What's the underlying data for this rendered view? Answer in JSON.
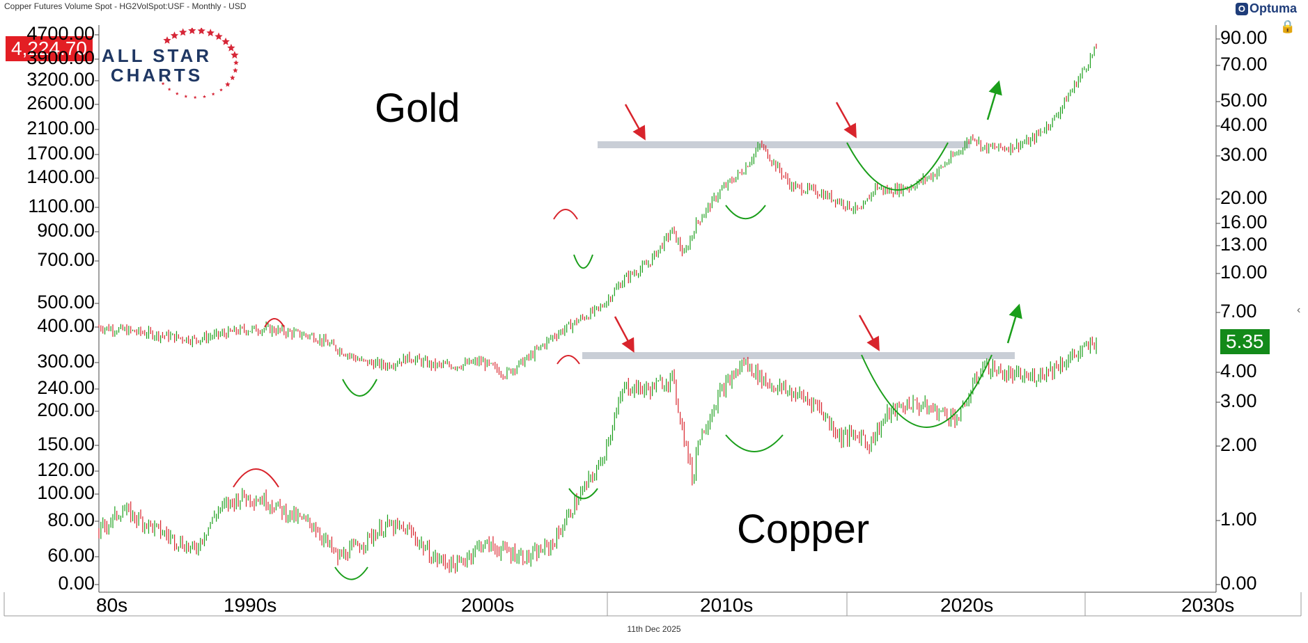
{
  "header": {
    "title": "Copper Futures Volume Spot - HG2VolSpot:USF - Monthly - USD",
    "brand": "Optuma",
    "brand_icon": "optuma-logo-icon"
  },
  "price_badge": "4,224.70",
  "right_badge": "5.35",
  "logo": {
    "line1": "ALL STAR",
    "line2": "CHARTS"
  },
  "annotations": {
    "gold": "Gold",
    "copper": "Copper"
  },
  "footer": {
    "date": "11th Dec 2025"
  },
  "colors": {
    "up": "#1a9e1a",
    "down": "#d8242c",
    "resistance": "#c9ced6",
    "badge_red": "#e31e24",
    "badge_green": "#138a1a"
  },
  "chart_data": {
    "type": "line",
    "left_axis": {
      "ticks": [
        "4700.00",
        "3900.00",
        "3200.00",
        "2600.00",
        "2100.00",
        "1700.00",
        "1400.00",
        "1100.00",
        "900.00",
        "700.00",
        "500.00",
        "400.00",
        "300.00",
        "240.00",
        "200.00",
        "150.00",
        "120.00",
        "100.00",
        "80.00",
        "60.00",
        "0.00"
      ],
      "scale": "log"
    },
    "right_axis": {
      "ticks": [
        "90.00",
        "70.00",
        "50.00",
        "40.00",
        "30.00",
        "20.00",
        "16.00",
        "13.00",
        "10.00",
        "7.00",
        "4.00",
        "3.00",
        "2.00",
        "1.00",
        "0.00"
      ],
      "scale": "log"
    },
    "x_axis": {
      "labels": [
        "80s",
        "1990s",
        "2000s",
        "2010s",
        "2020s",
        "2030s"
      ]
    },
    "series": [
      {
        "name": "Gold",
        "x": [
          1984,
          1986,
          1988,
          1990,
          1991,
          1993,
          1995,
          1996,
          1997,
          1998,
          1999,
          2000,
          2001,
          2002,
          2003,
          2004,
          2005,
          2006,
          2007,
          2008,
          2008.5,
          2009,
          2010,
          2011,
          2011.7,
          2012,
          2013,
          2014,
          2015,
          2015.9,
          2016.5,
          2017,
          2018,
          2019,
          2020,
          2020.6,
          2021,
          2022,
          2023,
          2024,
          2025,
          2025.8
        ],
        "y": [
          400,
          380,
          360,
          390,
          395,
          370,
          300,
          290,
          310,
          290,
          290,
          300,
          270,
          310,
          370,
          420,
          470,
          600,
          680,
          900,
          730,
          950,
          1250,
          1500,
          1850,
          1700,
          1300,
          1250,
          1150,
          1050,
          1300,
          1250,
          1300,
          1450,
          1750,
          2000,
          1800,
          1800,
          1900,
          2300,
          3200,
          4224.7
        ]
      },
      {
        "name": "Copper",
        "x": [
          1984,
          1985,
          1987,
          1988,
          1989,
          1990,
          1991,
          1992,
          1993,
          1994,
          1995,
          1996,
          1997,
          1998,
          1999,
          2000,
          2002,
          2003,
          2004,
          2005,
          2006,
          2007,
          2008,
          2008.9,
          2009,
          2010,
          2011,
          2012,
          2013,
          2014,
          2015,
          2016,
          2016.2,
          2017,
          2018,
          2019,
          2020,
          2021,
          2022,
          2023,
          2024,
          2025,
          2025.8
        ],
        "y": [
          0.9,
          1.1,
          0.85,
          0.75,
          1.1,
          1.25,
          1.2,
          1.05,
          0.95,
          0.7,
          0.8,
          0.95,
          0.9,
          0.7,
          0.65,
          0.8,
          0.7,
          0.8,
          1.2,
          1.7,
          3.5,
          3.4,
          3.8,
          1.4,
          2.0,
          3.3,
          4.4,
          3.6,
          3.3,
          3.0,
          2.2,
          2.2,
          2.0,
          2.7,
          3.0,
          2.8,
          2.6,
          4.3,
          3.9,
          3.8,
          4.2,
          4.8,
          5.35
        ]
      }
    ]
  }
}
